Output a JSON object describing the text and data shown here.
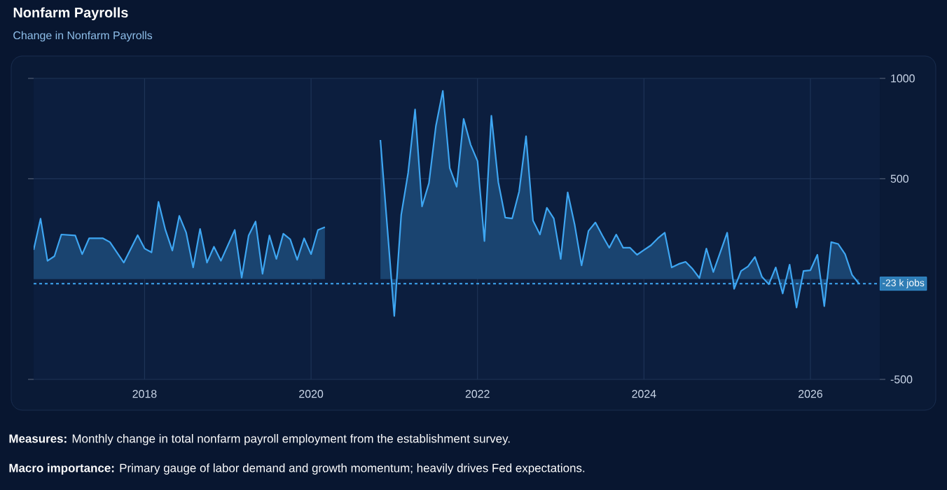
{
  "chart_data": {
    "type": "area",
    "title": "Nonfarm Payrolls",
    "subtitle": "Change in Nonfarm Payrolls",
    "color": "#3ea6f2",
    "x": [
      "2016-09",
      "2016-10",
      "2016-11",
      "2016-12",
      "2017-01",
      "2017-03",
      "2017-04",
      "2017-05",
      "2017-07",
      "2017-08",
      "2017-10",
      "2017-12",
      "2018-01",
      "2018-02",
      "2018-03",
      "2018-04",
      "2018-05",
      "2018-06",
      "2018-07",
      "2018-08",
      "2018-09",
      "2018-10",
      "2018-11",
      "2018-12",
      "2019-02",
      "2019-03",
      "2019-04",
      "2019-05",
      "2019-06",
      "2019-07",
      "2019-08",
      "2019-09",
      "2019-10",
      "2019-11",
      "2019-12",
      "2020-01",
      "2020-02",
      "2020-03",
      "2020-04",
      "2020-05",
      "2020-06",
      "2020-07",
      "2020-08",
      "2020-09",
      "2020-10",
      "2020-11",
      "2021-01",
      "2021-02",
      "2021-03",
      "2021-04",
      "2021-05",
      "2021-06",
      "2021-07",
      "2021-08",
      "2021-09",
      "2021-10",
      "2021-11",
      "2021-12",
      "2022-01",
      "2022-02",
      "2022-03",
      "2022-04",
      "2022-05",
      "2022-06",
      "2022-07",
      "2022-08",
      "2022-09",
      "2022-10",
      "2022-11",
      "2022-12",
      "2023-01",
      "2023-02",
      "2023-03",
      "2023-04",
      "2023-05",
      "2023-06",
      "2023-07",
      "2023-08",
      "2023-09",
      "2023-10",
      "2023-11",
      "2023-12",
      "2024-01",
      "2024-02",
      "2024-03",
      "2024-04",
      "2024-05",
      "2024-06",
      "2024-07",
      "2024-08",
      "2024-09",
      "2024-10",
      "2024-11",
      "2024-12",
      "2025-01",
      "2025-02",
      "2025-03",
      "2025-04",
      "2025-05",
      "2025-06",
      "2025-07",
      "2025-08",
      "2025-09",
      "2025-10",
      "2025-11",
      "2025-12",
      "2026-01",
      "2026-02",
      "2026-03",
      "2026-04",
      "2026-05",
      "2026-06",
      "2026-07",
      "2026-08"
    ],
    "values": [
      145,
      301,
      91,
      114,
      222,
      217,
      124,
      203,
      203,
      184,
      82,
      219,
      152,
      133,
      385,
      245,
      142,
      315,
      231,
      58,
      250,
      82,
      161,
      91,
      245,
      7,
      217,
      287,
      26,
      217,
      100,
      226,
      198,
      96,
      203,
      124,
      245,
      259,
      null,
      null,
      null,
      null,
      null,
      null,
      null,
      693,
      -184,
      320,
      530,
      845,
      362,
      478,
      763,
      938,
      553,
      460,
      798,
      670,
      588,
      189,
      814,
      483,
      306,
      302,
      436,
      712,
      292,
      222,
      355,
      302,
      100,
      432,
      273,
      68,
      240,
      282,
      217,
      156,
      222,
      156,
      156,
      121,
      145,
      168,
      203,
      231,
      58,
      75,
      86,
      51,
      5,
      152,
      35,
      133,
      231,
      -49,
      40,
      63,
      110,
      12,
      -26,
      58,
      -72,
      72,
      -142,
      40,
      44,
      121,
      -135,
      184,
      175,
      124,
      21,
      -23
    ],
    "xlim": [
      "2016-09",
      "2026-11"
    ],
    "xticks": [
      "2018",
      "2020",
      "2022",
      "2024",
      "2026"
    ],
    "ylim": [
      -500,
      1000
    ],
    "yticks": [
      -500,
      500,
      1000
    ],
    "grid": true,
    "ref_lines": [
      {
        "axis": "y",
        "value": -23,
        "label": "-23 k jobs",
        "color": "#3ea6f2",
        "line_style": "dashed"
      }
    ],
    "annotations": [
      "**Measures:** Monthly change in total nonfarm payroll employment from the establishment survey.",
      "**Macro importance:** Primary gauge of labor demand and growth momentum; heavily drives Fed expectations."
    ]
  }
}
